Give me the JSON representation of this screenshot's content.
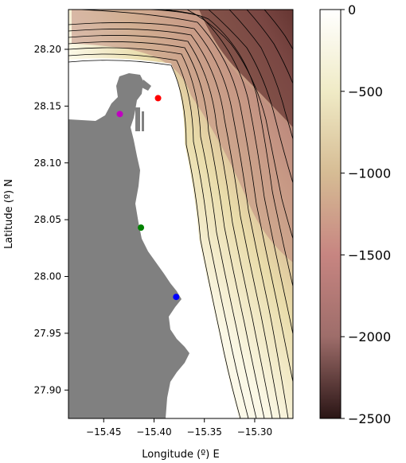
{
  "map": {
    "xlabel": "Longitude (º) E",
    "ylabel": "Latitude (º) N",
    "xlim": [
      -15.485,
      -15.262
    ],
    "ylim": [
      27.875,
      28.235
    ],
    "x_ticks": [
      {
        "value": -15.45,
        "label": "−15.45"
      },
      {
        "value": -15.4,
        "label": "−15.40"
      },
      {
        "value": -15.35,
        "label": "−15.35"
      },
      {
        "value": -15.3,
        "label": "−15.30"
      }
    ],
    "y_ticks": [
      {
        "value": 28.2,
        "label": "28.20"
      },
      {
        "value": 28.15,
        "label": "28.15"
      },
      {
        "value": 28.1,
        "label": "28.10"
      },
      {
        "value": 28.05,
        "label": "28.05"
      },
      {
        "value": 28.0,
        "label": "28.00"
      },
      {
        "value": 27.95,
        "label": "27.95"
      },
      {
        "value": 27.9,
        "label": "27.90"
      }
    ],
    "land_color": "#808080",
    "sea_shallow_color": "#ffffff",
    "contour_color": "#000000",
    "stations": [
      {
        "lon": -15.396,
        "lat": 28.157,
        "color": "#ff0000"
      },
      {
        "lon": -15.434,
        "lat": 28.143,
        "color": "#c000c0"
      },
      {
        "lon": -15.413,
        "lat": 28.043,
        "color": "#008000"
      },
      {
        "lon": -15.378,
        "lat": 27.982,
        "color": "#0000ff"
      }
    ]
  },
  "colorbar": {
    "min": -2500,
    "max": 0,
    "ticks": [
      {
        "value": 0,
        "label": "0"
      },
      {
        "value": -500,
        "label": "−500"
      },
      {
        "value": -1000,
        "label": "−1000"
      },
      {
        "value": -1500,
        "label": "−1500"
      },
      {
        "value": -2000,
        "label": "−2000"
      },
      {
        "value": -2500,
        "label": "−2500"
      }
    ],
    "colors": [
      "#ffffff",
      "#f0ebc6",
      "#d6bc94",
      "#c78581",
      "#9e6d6a",
      "#2a1515"
    ]
  }
}
